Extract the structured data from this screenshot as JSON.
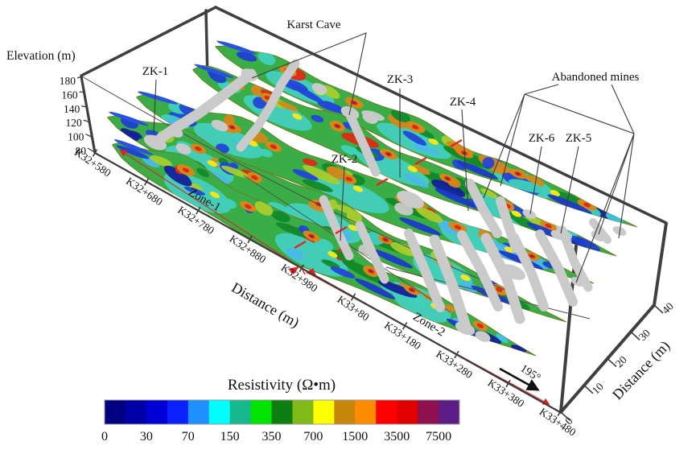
{
  "figure": {
    "labels": {
      "karst_cave": "Karst Cave",
      "abandoned_mines": "Abandoned mines",
      "zk1": "ZK-1",
      "zk2": "ZK-2",
      "zk3": "ZK-3",
      "zk4": "ZK-4",
      "zk5": "ZK-5",
      "zk6": "ZK-6",
      "zone1": "Zone-1",
      "zone2": "Zone-2",
      "bearing": "195°"
    },
    "axes": {
      "elevation": {
        "label": "Elevation (m)",
        "ticks": [
          "180",
          "160",
          "140",
          "120",
          "100",
          "80"
        ]
      },
      "chainage": {
        "label": "Distance (m)",
        "ticks": [
          "K32+580",
          "K32+680",
          "K32+780",
          "K32+880",
          "K32+980",
          "K33+80",
          "K33+180",
          "K33+280",
          "K33+380",
          "K33+480"
        ]
      },
      "right_distance": {
        "label": "Distance (m)",
        "ticks": [
          "0",
          "10",
          "20",
          "30",
          "40"
        ]
      }
    },
    "colorbar": {
      "title": "Resistivity (Ω•m)",
      "tick_values": [
        "0",
        "30",
        "70",
        "150",
        "350",
        "700",
        "1500",
        "3500",
        "7500"
      ],
      "colors": [
        "#000080",
        "#0000a8",
        "#0000d4",
        "#0a20ff",
        "#1e90ff",
        "#00ffff",
        "#17b890",
        "#00e400",
        "#0e7d12",
        "#7fba18",
        "#ffff00",
        "#c8860a",
        "#ff8c00",
        "#ff0000",
        "#e00000",
        "#8e1150",
        "#5d1d86"
      ]
    }
  },
  "chart_data": {
    "type": "heatmap",
    "title": "Resistivity (Ω•m)",
    "description": "3D fence diagram of five parallel electrical resistivity tomography cross-sections between chainage K32+580 and K33+480; gray voids mark karst caves and abandoned mines; boreholes ZK-1 to ZK-6 annotated",
    "colorbar": {
      "label": "Resistivity (Ω•m)",
      "tick_values": [
        0,
        30,
        70,
        150,
        350,
        700,
        1500,
        3500,
        7500
      ],
      "colors": [
        "#000080",
        "#0000a8",
        "#0000d4",
        "#0a20ff",
        "#1e90ff",
        "#00ffff",
        "#17b890",
        "#00e400",
        "#0e7d12",
        "#7fba18",
        "#ffff00",
        "#c8860a",
        "#ff8c00",
        "#ff0000",
        "#e00000",
        "#8e1150",
        "#5d1d86"
      ]
    },
    "axes": {
      "elevation_m": {
        "label": "Elevation (m)",
        "range": [
          80,
          180
        ],
        "ticks": [
          180,
          160,
          140,
          120,
          100,
          80
        ]
      },
      "chainage": {
        "label": "Distance (m)",
        "ticks": [
          "K32+580",
          "K32+680",
          "K32+780",
          "K32+880",
          "K32+980",
          "K33+80",
          "K33+180",
          "K33+280",
          "K33+380",
          "K33+480"
        ]
      },
      "crossline_m": {
        "label": "Distance (m)",
        "range": [
          0,
          40
        ],
        "ticks": [
          0,
          10,
          20,
          30,
          40
        ]
      }
    },
    "sections_crossline_offsets_m": [
      0,
      10,
      20,
      30,
      40
    ],
    "zones": [
      {
        "name": "Zone-1",
        "from": "K32+580",
        "to": "K32+980"
      },
      {
        "name": "Zone-2",
        "from": "K32+980",
        "to": "K33+480"
      }
    ],
    "survey_bearing_deg": 195,
    "boreholes": [
      "ZK-1",
      "ZK-2",
      "ZK-3",
      "ZK-4",
      "ZK-5",
      "ZK-6"
    ],
    "features": [
      "Karst Cave",
      "Abandoned mines"
    ]
  }
}
